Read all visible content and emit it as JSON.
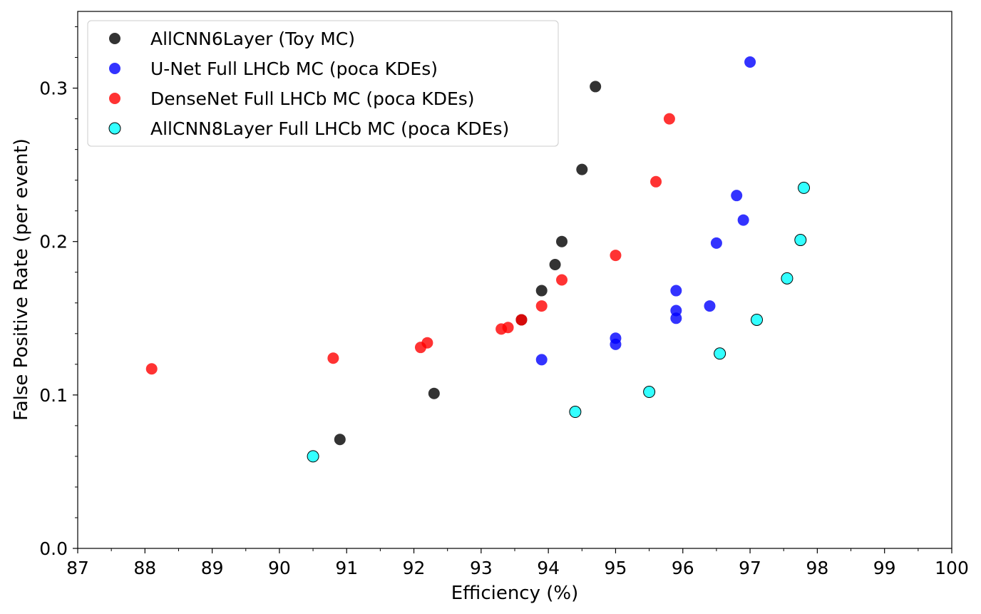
{
  "chart_data": {
    "type": "scatter",
    "xlabel": "Efficiency (%)",
    "ylabel": "False Positive Rate (per event)",
    "xlim": [
      87,
      100
    ],
    "ylim": [
      0.0,
      0.35
    ],
    "x_ticks": [
      "87",
      "88",
      "89",
      "90",
      "91",
      "92",
      "93",
      "94",
      "95",
      "96",
      "97",
      "98",
      "99",
      "100"
    ],
    "y_ticks": [
      "0.0",
      "0.1",
      "0.2",
      "0.3"
    ],
    "y_tick_values": [
      0.0,
      0.1,
      0.2,
      0.3
    ],
    "x_minor_step": 0.5,
    "y_minor_step": 0.02,
    "grid": false,
    "legend_position": "top-left",
    "series": [
      {
        "name": "AllCNN6Layer (Toy MC)",
        "color": "#000000",
        "edge": false,
        "points": [
          [
            90.9,
            0.071
          ],
          [
            92.3,
            0.101
          ],
          [
            93.6,
            0.149
          ],
          [
            93.9,
            0.168
          ],
          [
            94.1,
            0.185
          ],
          [
            94.2,
            0.2
          ],
          [
            94.5,
            0.247
          ],
          [
            94.7,
            0.301
          ]
        ]
      },
      {
        "name": "U-Net Full LHCb MC (poca KDEs)",
        "color": "#0000ff",
        "edge": false,
        "points": [
          [
            93.9,
            0.123
          ],
          [
            95.0,
            0.133
          ],
          [
            95.0,
            0.137
          ],
          [
            95.9,
            0.15
          ],
          [
            95.9,
            0.155
          ],
          [
            95.9,
            0.168
          ],
          [
            96.4,
            0.158
          ],
          [
            96.5,
            0.199
          ],
          [
            96.8,
            0.23
          ],
          [
            96.9,
            0.214
          ],
          [
            97.0,
            0.317
          ]
        ]
      },
      {
        "name": "DenseNet Full LHCb MC (poca KDEs)",
        "color": "#ff0000",
        "edge": false,
        "points": [
          [
            88.1,
            0.117
          ],
          [
            90.8,
            0.124
          ],
          [
            92.1,
            0.131
          ],
          [
            92.2,
            0.134
          ],
          [
            93.3,
            0.143
          ],
          [
            93.4,
            0.144
          ],
          [
            93.6,
            0.149
          ],
          [
            93.9,
            0.158
          ],
          [
            94.2,
            0.175
          ],
          [
            95.0,
            0.191
          ],
          [
            95.6,
            0.239
          ],
          [
            95.8,
            0.28
          ]
        ]
      },
      {
        "name": "AllCNN8Layer Full LHCb MC (poca KDEs)",
        "color": "#00ffff",
        "edge": true,
        "points": [
          [
            90.5,
            0.06
          ],
          [
            94.4,
            0.089
          ],
          [
            95.5,
            0.102
          ],
          [
            96.55,
            0.127
          ],
          [
            97.1,
            0.149
          ],
          [
            97.55,
            0.176
          ],
          [
            97.75,
            0.201
          ],
          [
            97.8,
            0.235
          ]
        ]
      }
    ]
  }
}
